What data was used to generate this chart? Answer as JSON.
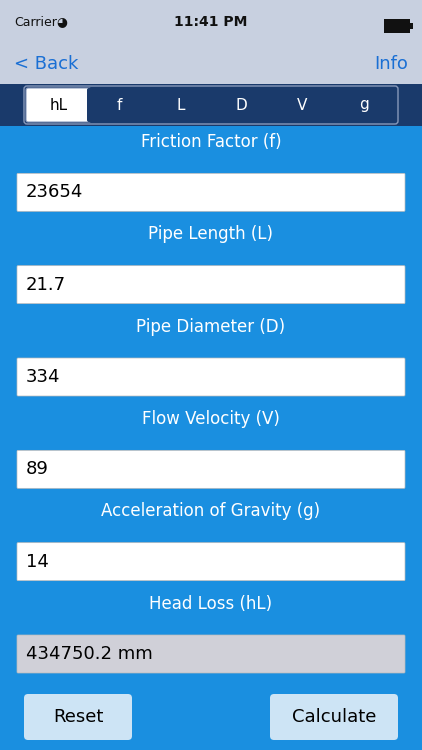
{
  "status_bar_bg": "#c8d0e0",
  "nav_bar_bg": "#c8d0e0",
  "nav_back": "< Back",
  "nav_info": "Info",
  "nav_text_color": "#1a6fd4",
  "tab_bar_bg": "#1a3a6b",
  "tab_labels": [
    "hL",
    "f",
    "L",
    "D",
    "V",
    "g"
  ],
  "tab_active": 0,
  "tab_active_bg": "#ffffff",
  "tab_inactive_text": "#ffffff",
  "tab_active_text": "#000000",
  "main_bg": "#1a8fe0",
  "fields": [
    {
      "label": "Friction Factor (f)",
      "value": "23654"
    },
    {
      "label": "Pipe Length (L)",
      "value": "21.7"
    },
    {
      "label": "Pipe Diameter (D)",
      "value": "334"
    },
    {
      "label": "Flow Velocity (V)",
      "value": "89"
    },
    {
      "label": "Acceleration of Gravity (g)",
      "value": "14"
    },
    {
      "label": "Head Loss (hL)",
      "value": "434750.2 mm"
    }
  ],
  "field_bg": "#ffffff",
  "field_last_bg": "#d0d0d8",
  "field_text_color": "#000000",
  "label_text_color": "#ffffff",
  "button_bg": "#cde4f5",
  "button_text_color": "#000000",
  "buttons": [
    "Reset",
    "Calculate"
  ]
}
